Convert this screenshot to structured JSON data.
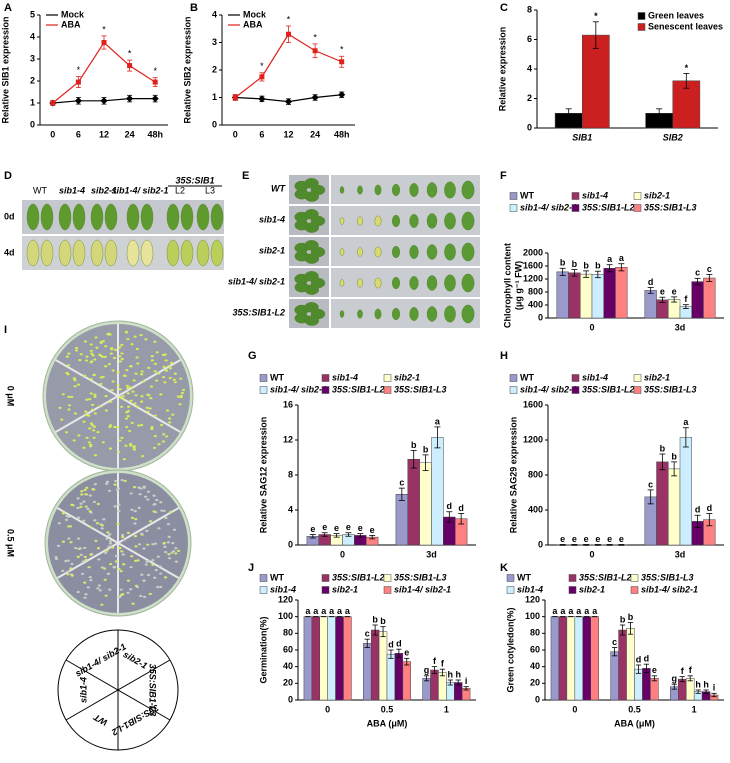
{
  "chart_data": [
    {
      "type": "line",
      "label": "A",
      "ylabel": "Relative SIB1 expression",
      "categories": [
        "0",
        "6",
        "12",
        "24",
        "48h"
      ],
      "ylim": [
        0,
        5
      ],
      "yticks": [
        0,
        1,
        2,
        3,
        4,
        5
      ],
      "legend": "top-left",
      "series": [
        {
          "name": "Mock",
          "color": "#000000",
          "values": [
            1,
            1.1,
            1.1,
            1.2,
            1.2
          ],
          "errors": [
            0.1,
            0.15,
            0.15,
            0.15,
            0.15
          ]
        },
        {
          "name": "ABA",
          "color": "#e0201b",
          "values": [
            1,
            1.95,
            3.75,
            2.7,
            1.95
          ],
          "errors": [
            0.1,
            0.25,
            0.3,
            0.25,
            0.2
          ],
          "significance": [
            null,
            "*",
            "*",
            "*",
            "*"
          ]
        }
      ]
    },
    {
      "type": "line",
      "label": "B",
      "ylabel": "Relative SIB2 expression",
      "categories": [
        "0",
        "6",
        "12",
        "24",
        "48h"
      ],
      "ylim": [
        0,
        4
      ],
      "yticks": [
        0,
        1,
        2,
        3,
        4
      ],
      "legend": "top-left",
      "series": [
        {
          "name": "Mock",
          "color": "#000000",
          "values": [
            1,
            0.95,
            0.85,
            1.0,
            1.1
          ],
          "errors": [
            0.1,
            0.1,
            0.1,
            0.1,
            0.1
          ]
        },
        {
          "name": "ABA",
          "color": "#e0201b",
          "values": [
            1,
            1.75,
            3.3,
            2.7,
            2.3
          ],
          "errors": [
            0.1,
            0.15,
            0.3,
            0.25,
            0.2
          ],
          "significance": [
            null,
            "*",
            "*",
            "*",
            "*"
          ]
        }
      ]
    },
    {
      "type": "bar",
      "label": "C",
      "ylabel": "Relative expression",
      "categories": [
        "SIB1",
        "SIB2"
      ],
      "ylim": [
        0,
        8
      ],
      "yticks": [
        0,
        2,
        4,
        6,
        8
      ],
      "legend": "top-right",
      "series": [
        {
          "name": "Green leaves",
          "color": "#000000",
          "values": [
            1,
            1
          ],
          "errors": [
            0.3,
            0.3
          ]
        },
        {
          "name": "Senescent leaves",
          "color": "#cc1f1f",
          "values": [
            6.3,
            3.2
          ],
          "errors": [
            0.9,
            0.5
          ],
          "significance": [
            "*",
            "*"
          ]
        }
      ]
    },
    {
      "type": "bar",
      "label": "F",
      "ylabel": [
        "Chlorophyll content",
        "(μg g⁻¹ FW)"
      ],
      "categories": [
        "0",
        "3d"
      ],
      "ylim": [
        0,
        2000
      ],
      "yticks": [
        0,
        400,
        800,
        1200,
        1600,
        2000
      ],
      "legend": "above",
      "series": [
        {
          "name": "WT",
          "color": "#9999cc",
          "values": [
            1420,
            850
          ],
          "errors": [
            110,
            90
          ],
          "letters": [
            "b",
            "d"
          ]
        },
        {
          "name": "sib1-4",
          "color": "#993366",
          "values": [
            1390,
            560
          ],
          "errors": [
            100,
            80
          ],
          "letters": [
            "b",
            "e"
          ]
        },
        {
          "name": "sib2-1",
          "color": "#ffffcc",
          "values": [
            1350,
            570
          ],
          "errors": [
            100,
            80
          ],
          "letters": [
            "b",
            "e"
          ]
        },
        {
          "name": "sib1-4/ sib2-1",
          "color": "#cceeff",
          "values": [
            1340,
            350
          ],
          "errors": [
            100,
            60
          ],
          "letters": [
            "b",
            "f"
          ]
        },
        {
          "name": "35S:SIB1-L2",
          "color": "#660066",
          "values": [
            1530,
            1120
          ],
          "errors": [
            110,
            100
          ],
          "letters": [
            "a",
            "c"
          ]
        },
        {
          "name": "35S:SIB1-L3",
          "color": "#ff8080",
          "values": [
            1560,
            1230
          ],
          "errors": [
            110,
            110
          ],
          "letters": [
            "a",
            "c"
          ]
        }
      ]
    },
    {
      "type": "bar",
      "label": "G",
      "ylabel": "Relative SAG12 expression",
      "categories": [
        "0",
        "3d"
      ],
      "ylim": [
        0,
        16
      ],
      "yticks": [
        0,
        4,
        8,
        12,
        16
      ],
      "legend": "above",
      "series": [
        {
          "name": "WT",
          "color": "#9999cc",
          "values": [
            1,
            5.8
          ],
          "errors": [
            0.2,
            0.7
          ],
          "letters": [
            "e",
            "c"
          ]
        },
        {
          "name": "sib1-4",
          "color": "#993366",
          "values": [
            1.2,
            9.8
          ],
          "errors": [
            0.2,
            1.0
          ],
          "letters": [
            "e",
            "b"
          ]
        },
        {
          "name": "sib2-1",
          "color": "#ffffcc",
          "values": [
            1.1,
            9.4
          ],
          "errors": [
            0.2,
            0.9
          ],
          "letters": [
            "e",
            "b"
          ]
        },
        {
          "name": "sib1-4/ sib2-1",
          "color": "#cceeff",
          "values": [
            1.2,
            12.3
          ],
          "errors": [
            0.2,
            1.2
          ],
          "letters": [
            "e",
            "a"
          ]
        },
        {
          "name": "35S:SIB1-L2",
          "color": "#660066",
          "values": [
            1.1,
            3.2
          ],
          "errors": [
            0.2,
            0.6
          ],
          "letters": [
            "e",
            "d"
          ]
        },
        {
          "name": "35S:SIB1-L3",
          "color": "#ff8080",
          "values": [
            0.9,
            3.0
          ],
          "errors": [
            0.2,
            0.6
          ],
          "letters": [
            "e",
            "d"
          ]
        }
      ]
    },
    {
      "type": "bar",
      "label": "H",
      "ylabel": "Relative SAG29 expression",
      "categories": [
        "0",
        "3d"
      ],
      "ylim": [
        0,
        1600
      ],
      "yticks": [
        0,
        400,
        800,
        1200,
        1600
      ],
      "legend": "above",
      "series": [
        {
          "name": "WT",
          "color": "#9999cc",
          "values": [
            1,
            550
          ],
          "errors": [
            5,
            80
          ],
          "letters": [
            "e",
            "c"
          ]
        },
        {
          "name": "sib1-4",
          "color": "#993366",
          "values": [
            1,
            950
          ],
          "errors": [
            5,
            90
          ],
          "letters": [
            "e",
            "b"
          ]
        },
        {
          "name": "sib2-1",
          "color": "#ffffcc",
          "values": [
            1,
            870
          ],
          "errors": [
            5,
            80
          ],
          "letters": [
            "e",
            "b"
          ]
        },
        {
          "name": "sib1-4/ sib2-1",
          "color": "#cceeff",
          "values": [
            1,
            1230
          ],
          "errors": [
            5,
            110
          ],
          "letters": [
            "e",
            "a"
          ]
        },
        {
          "name": "35S:SIB1-L2",
          "color": "#660066",
          "values": [
            1,
            270
          ],
          "errors": [
            5,
            70
          ],
          "letters": [
            "e",
            "d"
          ]
        },
        {
          "name": "35S:SIB1-L3",
          "color": "#ff8080",
          "values": [
            1,
            290
          ],
          "errors": [
            5,
            70
          ],
          "letters": [
            "e",
            "d"
          ]
        }
      ]
    },
    {
      "type": "bar",
      "label": "J",
      "ylabel": "Germination(%)",
      "xlabel": "ABA (μM)",
      "categories": [
        "0",
        "0.5",
        "1"
      ],
      "ylim": [
        0,
        120
      ],
      "yticks": [
        0,
        20,
        40,
        60,
        80,
        100,
        120
      ],
      "legend": "above",
      "series": [
        {
          "name": "WT",
          "color": "#9999cc",
          "values": [
            100,
            68,
            26
          ],
          "errors": [
            0,
            5,
            3
          ],
          "letters": [
            "a",
            "c",
            "g"
          ]
        },
        {
          "name": "35S:SIB1-L2",
          "color": "#993366",
          "values": [
            100,
            84,
            36
          ],
          "errors": [
            0,
            6,
            4
          ],
          "letters": [
            "a",
            "b",
            "f"
          ]
        },
        {
          "name": "35S:SIB1-L3",
          "color": "#ffffcc",
          "values": [
            100,
            82,
            33
          ],
          "errors": [
            0,
            6,
            4
          ],
          "letters": [
            "a",
            "b",
            "f"
          ]
        },
        {
          "name": "sib1-4",
          "color": "#cceeff",
          "values": [
            100,
            55,
            21
          ],
          "errors": [
            0,
            5,
            3
          ],
          "letters": [
            "a",
            "d",
            "h"
          ]
        },
        {
          "name": "sib2-1",
          "color": "#660066",
          "values": [
            100,
            56,
            21
          ],
          "errors": [
            0,
            5,
            3
          ],
          "letters": [
            "a",
            "d",
            "h"
          ]
        },
        {
          "name": "sib1-4/ sib2-1",
          "color": "#ff8080",
          "values": [
            100,
            46,
            14
          ],
          "errors": [
            0,
            4,
            2
          ],
          "letters": [
            "a",
            "e",
            "i"
          ]
        }
      ]
    },
    {
      "type": "bar",
      "label": "K",
      "ylabel": "Green cotyledon(%)",
      "xlabel": "ABA (μM)",
      "categories": [
        "0",
        "0.5",
        "1"
      ],
      "ylim": [
        0,
        120
      ],
      "yticks": [
        0,
        20,
        40,
        60,
        80,
        100,
        120
      ],
      "legend": "above",
      "series": [
        {
          "name": "WT",
          "color": "#9999cc",
          "values": [
            100,
            58,
            16
          ],
          "errors": [
            0,
            5,
            3
          ],
          "letters": [
            "a",
            "c",
            "g"
          ]
        },
        {
          "name": "35S:SIB1-L2",
          "color": "#993366",
          "values": [
            100,
            84,
            25
          ],
          "errors": [
            0,
            6,
            3
          ],
          "letters": [
            "a",
            "b",
            "f"
          ]
        },
        {
          "name": "35S:SIB1-L3",
          "color": "#ffffcc",
          "values": [
            100,
            86,
            26
          ],
          "errors": [
            0,
            7,
            3
          ],
          "letters": [
            "a",
            "b",
            "f"
          ]
        },
        {
          "name": "sib1-4",
          "color": "#cceeff",
          "values": [
            100,
            37,
            10
          ],
          "errors": [
            0,
            5,
            2
          ],
          "letters": [
            "a",
            "d",
            "h"
          ]
        },
        {
          "name": "sib2-1",
          "color": "#660066",
          "values": [
            100,
            38,
            10
          ],
          "errors": [
            0,
            5,
            2
          ],
          "letters": [
            "a",
            "d",
            "h"
          ]
        },
        {
          "name": "sib1-4/ sib2-1",
          "color": "#ff8080",
          "values": [
            100,
            26,
            6
          ],
          "errors": [
            0,
            3,
            2
          ],
          "letters": [
            "a",
            "e",
            "i"
          ]
        }
      ]
    }
  ],
  "photo_panels": [
    {
      "label": "D",
      "columns": [
        "WT",
        "sib1-4",
        "sib2-1",
        "sib1-4/ sib2-1",
        "L2",
        "L3"
      ],
      "group_label": "35S:SIB1",
      "rows": [
        "0d",
        "4d"
      ]
    },
    {
      "label": "E",
      "rows": [
        "WT",
        "sib1-4",
        "sib2-1",
        "sib1-4/ sib2-1",
        "35S:SIB1-L2"
      ]
    },
    {
      "label": "I",
      "rows": [
        "0 μM",
        "0.5 μM"
      ],
      "sectors": [
        "sib2-1",
        "35S:SIB1-L3",
        "35S:SIB1-L2",
        "WT",
        "sib1-4",
        "sib1-4/ sib2-1"
      ]
    }
  ]
}
